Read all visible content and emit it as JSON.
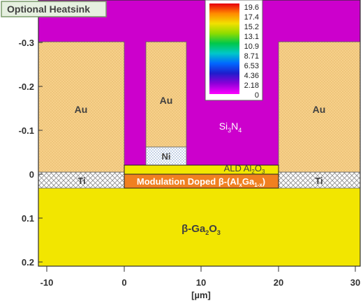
{
  "heatsink_label": "Optional Heatsink",
  "x_axis": {
    "label": "[µm]",
    "ticks": [
      "-10",
      "0",
      "10",
      "20",
      "30"
    ]
  },
  "y_axis": {
    "ticks": [
      "-0.3",
      "-0.2",
      "-0.1",
      "0",
      "0.1",
      "0.2"
    ]
  },
  "colorbar": {
    "values": [
      "19.6",
      "17.4",
      "15.2",
      "13.1",
      "10.9",
      "8.71",
      "6.53",
      "4.36",
      "2.18",
      "0"
    ],
    "colors": [
      "#e8000b",
      "#ff8a00",
      "#f2e000",
      "#8fdc00",
      "#00c84a",
      "#00c8c8",
      "#0068ff",
      "#1e1ecc",
      "#8a00d8",
      "#ff00ff"
    ]
  },
  "regions": {
    "si3n4": {
      "base": "Si",
      "sub1": "3",
      "mid": "N",
      "sub2": "4",
      "color": "#cc00cc"
    },
    "gold_left": {
      "label": "Au",
      "color": "#f7d08a"
    },
    "gold_gate": {
      "label": "Au"
    },
    "gold_right": {
      "label": "Au"
    },
    "ni": {
      "label": "Ni"
    },
    "ti_left": {
      "label": "Ti"
    },
    "ti_right": {
      "label": "Ti"
    },
    "ald": {
      "label": "ALD Al",
      "sub1": "2",
      "mid": "O",
      "sub2": "3",
      "color": "#f2e600"
    },
    "modulation": {
      "label": "Modulation Doped β-(Al",
      "sub1": "x",
      "mid": "Ga",
      "sub2": "1-x",
      "tail": ")",
      "color": "#f08020"
    },
    "substrate": {
      "label": "β-Ga",
      "sub1": "2",
      "mid": "O",
      "sub2": "3",
      "color": "#f2e600"
    }
  }
}
